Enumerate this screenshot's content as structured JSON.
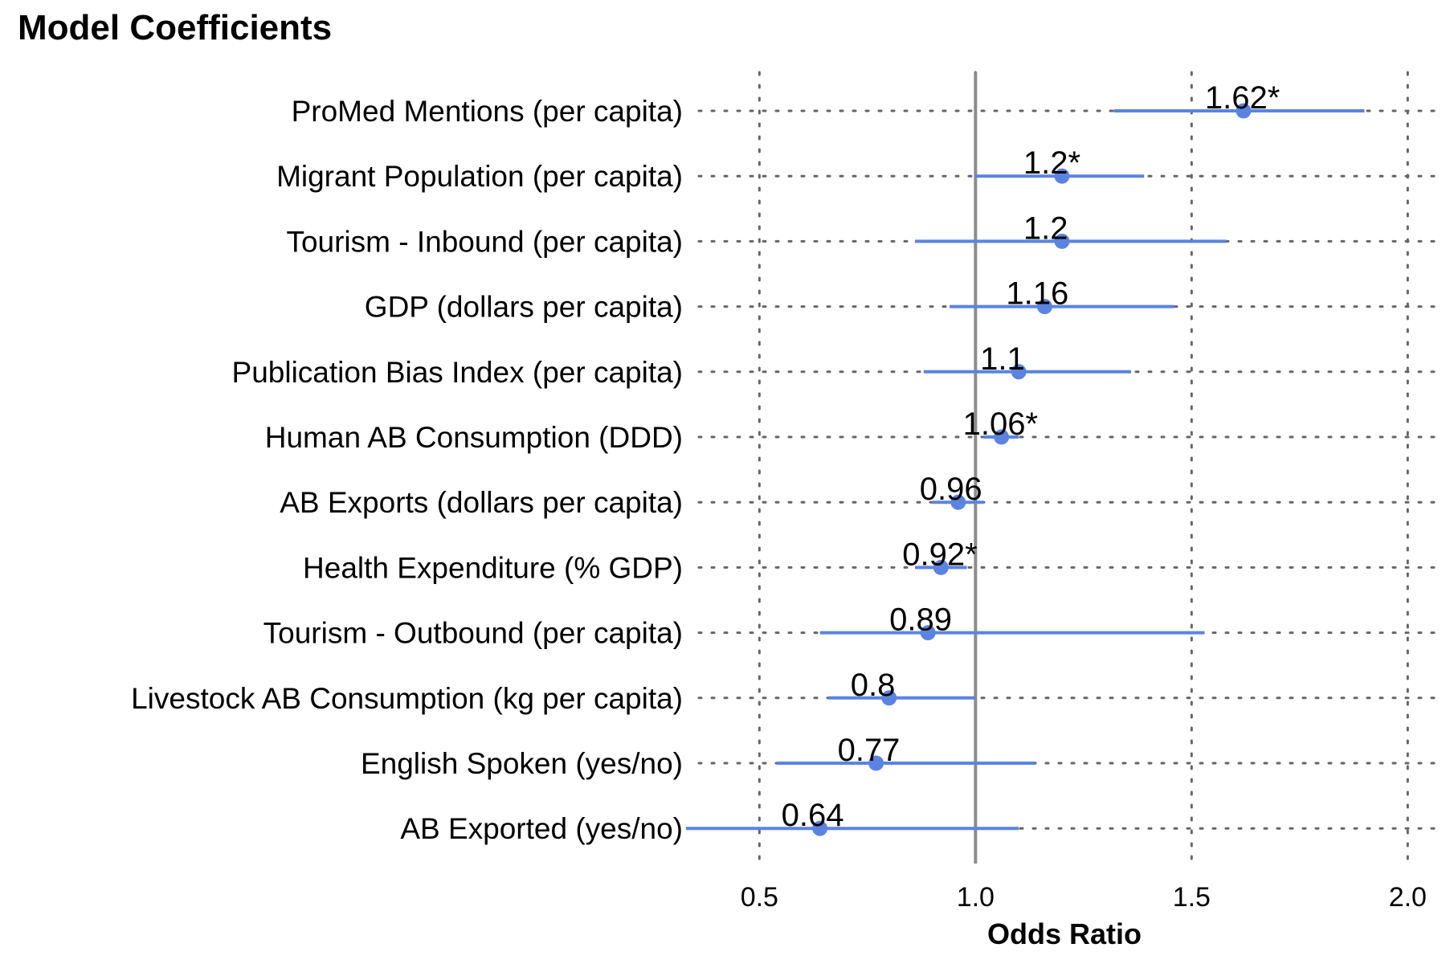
{
  "chart_data": {
    "type": "scatter",
    "title": "Model Coefficients",
    "xlabel": "Odds Ratio",
    "ylabel": "",
    "xlim": [
      0.36,
      2.07
    ],
    "reference_line": 1.0,
    "xticks": [
      0.5,
      1.0,
      1.5,
      2.0
    ],
    "xtick_labels": [
      "0.5",
      "1.0",
      "1.5",
      "2.0"
    ],
    "grid": "dotted",
    "colors": {
      "point": "#5b84e0",
      "interval": "#5b84e0",
      "reference": "#8c8c8c",
      "grid": "#666666"
    },
    "points": [
      {
        "label": "ProMed Mentions (per capita)",
        "value": 1.62,
        "lower": 1.32,
        "upper": 1.9,
        "value_label": "1.62*"
      },
      {
        "label": "Migrant Population (per capita)",
        "value": 1.2,
        "lower": 1.0,
        "upper": 1.39,
        "value_label": "1.2*"
      },
      {
        "label": "Tourism - Inbound (per capita)",
        "value": 1.2,
        "lower": 0.86,
        "upper": 1.58,
        "value_label": "1.2"
      },
      {
        "label": "GDP (dollars per capita)",
        "value": 1.16,
        "lower": 0.94,
        "upper": 1.46,
        "value_label": "1.16"
      },
      {
        "label": "Publication Bias Index (per capita)",
        "value": 1.1,
        "lower": 0.88,
        "upper": 1.36,
        "value_label": "1.1"
      },
      {
        "label": "Human AB Consumption (DDD)",
        "value": 1.06,
        "lower": 1.02,
        "upper": 1.1,
        "value_label": "1.06*"
      },
      {
        "label": "AB Exports (dollars per capita)",
        "value": 0.96,
        "lower": 0.9,
        "upper": 1.02,
        "value_label": "0.96"
      },
      {
        "label": "Health Expenditure (% GDP)",
        "value": 0.92,
        "lower": 0.86,
        "upper": 0.98,
        "value_label": "0.92*"
      },
      {
        "label": "Tourism - Outbound (per capita)",
        "value": 0.89,
        "lower": 0.64,
        "upper": 1.53,
        "value_label": "0.89"
      },
      {
        "label": "Livestock AB Consumption (kg per capita)",
        "value": 0.8,
        "lower": 0.66,
        "upper": 1.0,
        "value_label": "0.8"
      },
      {
        "label": "English Spoken (yes/no)",
        "value": 0.77,
        "lower": 0.54,
        "upper": 1.14,
        "value_label": "0.77"
      },
      {
        "label": "AB Exported (yes/no)",
        "value": 0.64,
        "lower": 0.33,
        "upper": 1.1,
        "value_label": "0.64"
      }
    ]
  }
}
